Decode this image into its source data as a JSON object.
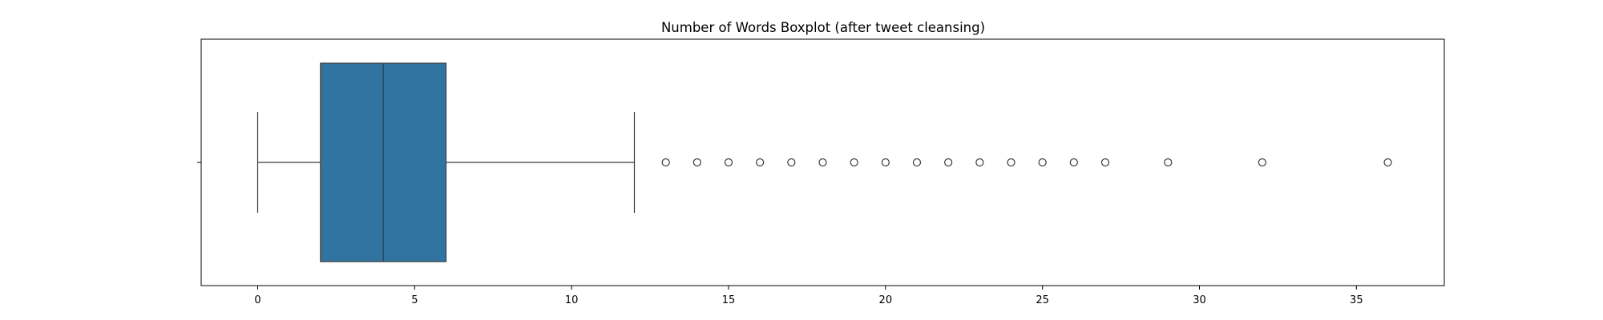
{
  "chart_data": {
    "type": "boxplot",
    "title": "Number of Words Boxplot (after tweet cleansing)",
    "xlabel": "",
    "ylabel": "",
    "orientation": "horizontal",
    "xlim": [
      -1.8,
      37.8
    ],
    "xticks": [
      0,
      5,
      10,
      15,
      20,
      25,
      30,
      35
    ],
    "xtick_labels": [
      "0",
      "5",
      "10",
      "15",
      "20",
      "25",
      "30",
      "35"
    ],
    "grid": false,
    "legend": "none",
    "box": {
      "whisker_low": 0,
      "q1": 2,
      "median": 4,
      "q3": 6,
      "whisker_high": 12
    },
    "outliers": [
      13,
      14,
      15,
      16,
      17,
      18,
      19,
      20,
      21,
      22,
      23,
      24,
      25,
      26,
      27,
      29,
      32,
      36
    ],
    "colors": {
      "box_fill": "#3274a1",
      "line": "#3a3a3a",
      "outlier_edge": "#3a3a3a"
    }
  }
}
